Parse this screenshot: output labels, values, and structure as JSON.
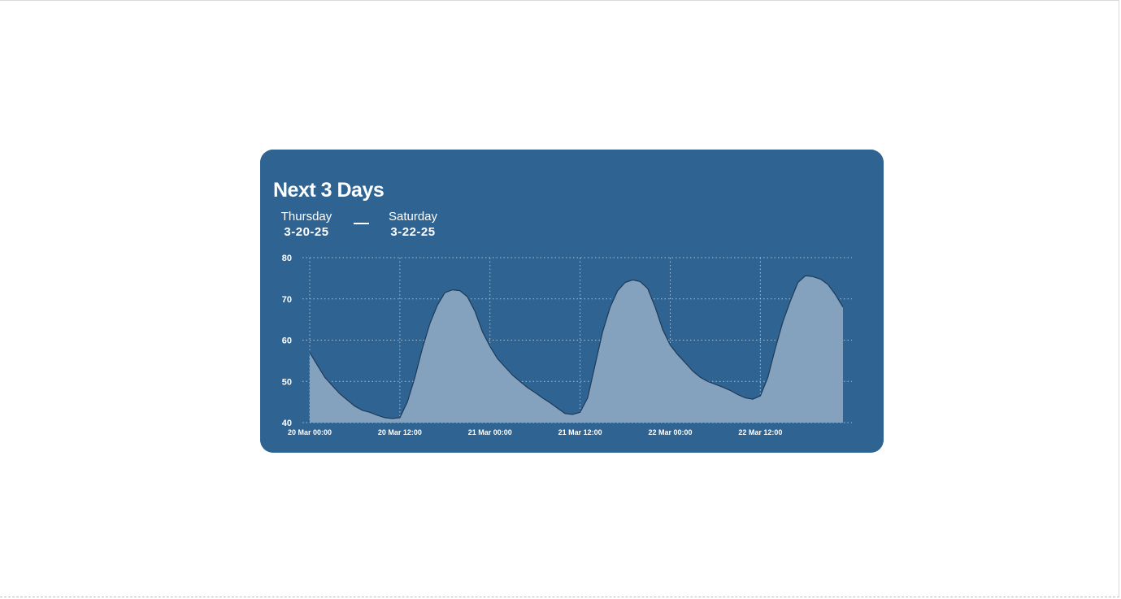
{
  "colors": {
    "card_background": "#2e6392",
    "area_fill": "#84a2be",
    "line": "#1e3a58",
    "grid": "#aac2d8",
    "text": "#ffffff"
  },
  "widget": {
    "title": "Next 3 Days",
    "range_start": {
      "day": "Thursday",
      "date": "3-20-25"
    },
    "range_end": {
      "day": "Saturday",
      "date": "3-22-25"
    }
  },
  "chart_data": {
    "type": "area",
    "grid": true,
    "ylim": [
      40,
      80
    ],
    "y_ticks": [
      40,
      50,
      60,
      70,
      80
    ],
    "xlim": [
      "20 Mar 00:00",
      "22 Mar 23:00"
    ],
    "x_ticks": [
      "20 Mar 00:00",
      "20 Mar 12:00",
      "21 Mar 00:00",
      "21 Mar 12:00",
      "22 Mar 00:00",
      "22 Mar 12:00"
    ],
    "series": [
      {
        "x": [
          "20 Mar 00:00",
          "20 Mar 01:00",
          "20 Mar 02:00",
          "20 Mar 03:00",
          "20 Mar 04:00",
          "20 Mar 05:00",
          "20 Mar 06:00",
          "20 Mar 07:00",
          "20 Mar 08:00",
          "20 Mar 09:00",
          "20 Mar 10:00",
          "20 Mar 11:00",
          "20 Mar 12:00",
          "20 Mar 13:00",
          "20 Mar 14:00",
          "20 Mar 15:00",
          "20 Mar 16:00",
          "20 Mar 17:00",
          "20 Mar 18:00",
          "20 Mar 19:00",
          "20 Mar 20:00",
          "20 Mar 21:00",
          "20 Mar 22:00",
          "20 Mar 23:00",
          "21 Mar 00:00",
          "21 Mar 01:00",
          "21 Mar 02:00",
          "21 Mar 03:00",
          "21 Mar 04:00",
          "21 Mar 05:00",
          "21 Mar 06:00",
          "21 Mar 07:00",
          "21 Mar 08:00",
          "21 Mar 09:00",
          "21 Mar 10:00",
          "21 Mar 11:00",
          "21 Mar 12:00",
          "21 Mar 13:00",
          "21 Mar 14:00",
          "21 Mar 15:00",
          "21 Mar 16:00",
          "21 Mar 17:00",
          "21 Mar 18:00",
          "21 Mar 19:00",
          "21 Mar 20:00",
          "21 Mar 21:00",
          "21 Mar 22:00",
          "21 Mar 23:00",
          "22 Mar 00:00",
          "22 Mar 01:00",
          "22 Mar 02:00",
          "22 Mar 03:00",
          "22 Mar 04:00",
          "22 Mar 05:00",
          "22 Mar 06:00",
          "22 Mar 07:00",
          "22 Mar 08:00",
          "22 Mar 09:00",
          "22 Mar 10:00",
          "22 Mar 11:00",
          "22 Mar 12:00",
          "22 Mar 13:00",
          "22 Mar 14:00",
          "22 Mar 15:00",
          "22 Mar 16:00",
          "22 Mar 17:00",
          "22 Mar 18:00",
          "22 Mar 19:00",
          "22 Mar 20:00",
          "22 Mar 21:00",
          "22 Mar 22:00",
          "22 Mar 23:00"
        ],
        "values": [
          57,
          54,
          51,
          49,
          47,
          45.5,
          44,
          43,
          42.5,
          41.8,
          41.2,
          41,
          41.2,
          45,
          51,
          58,
          64,
          68.5,
          71.5,
          72.2,
          72,
          70.5,
          67,
          62,
          58.5,
          55.5,
          53.5,
          51.5,
          50,
          48.5,
          47.3,
          46,
          44.8,
          43.5,
          42.2,
          42,
          42.5,
          46,
          54,
          62,
          68,
          72,
          74,
          74.6,
          74.2,
          72.5,
          68,
          62.5,
          58.8,
          56.5,
          54.5,
          52.5,
          51,
          50,
          49.3,
          48.6,
          47.8,
          46.8,
          46,
          45.7,
          46.5,
          51,
          58,
          64.5,
          69.5,
          74,
          75.6,
          75.4,
          74.8,
          73.5,
          71,
          68
        ]
      }
    ]
  }
}
